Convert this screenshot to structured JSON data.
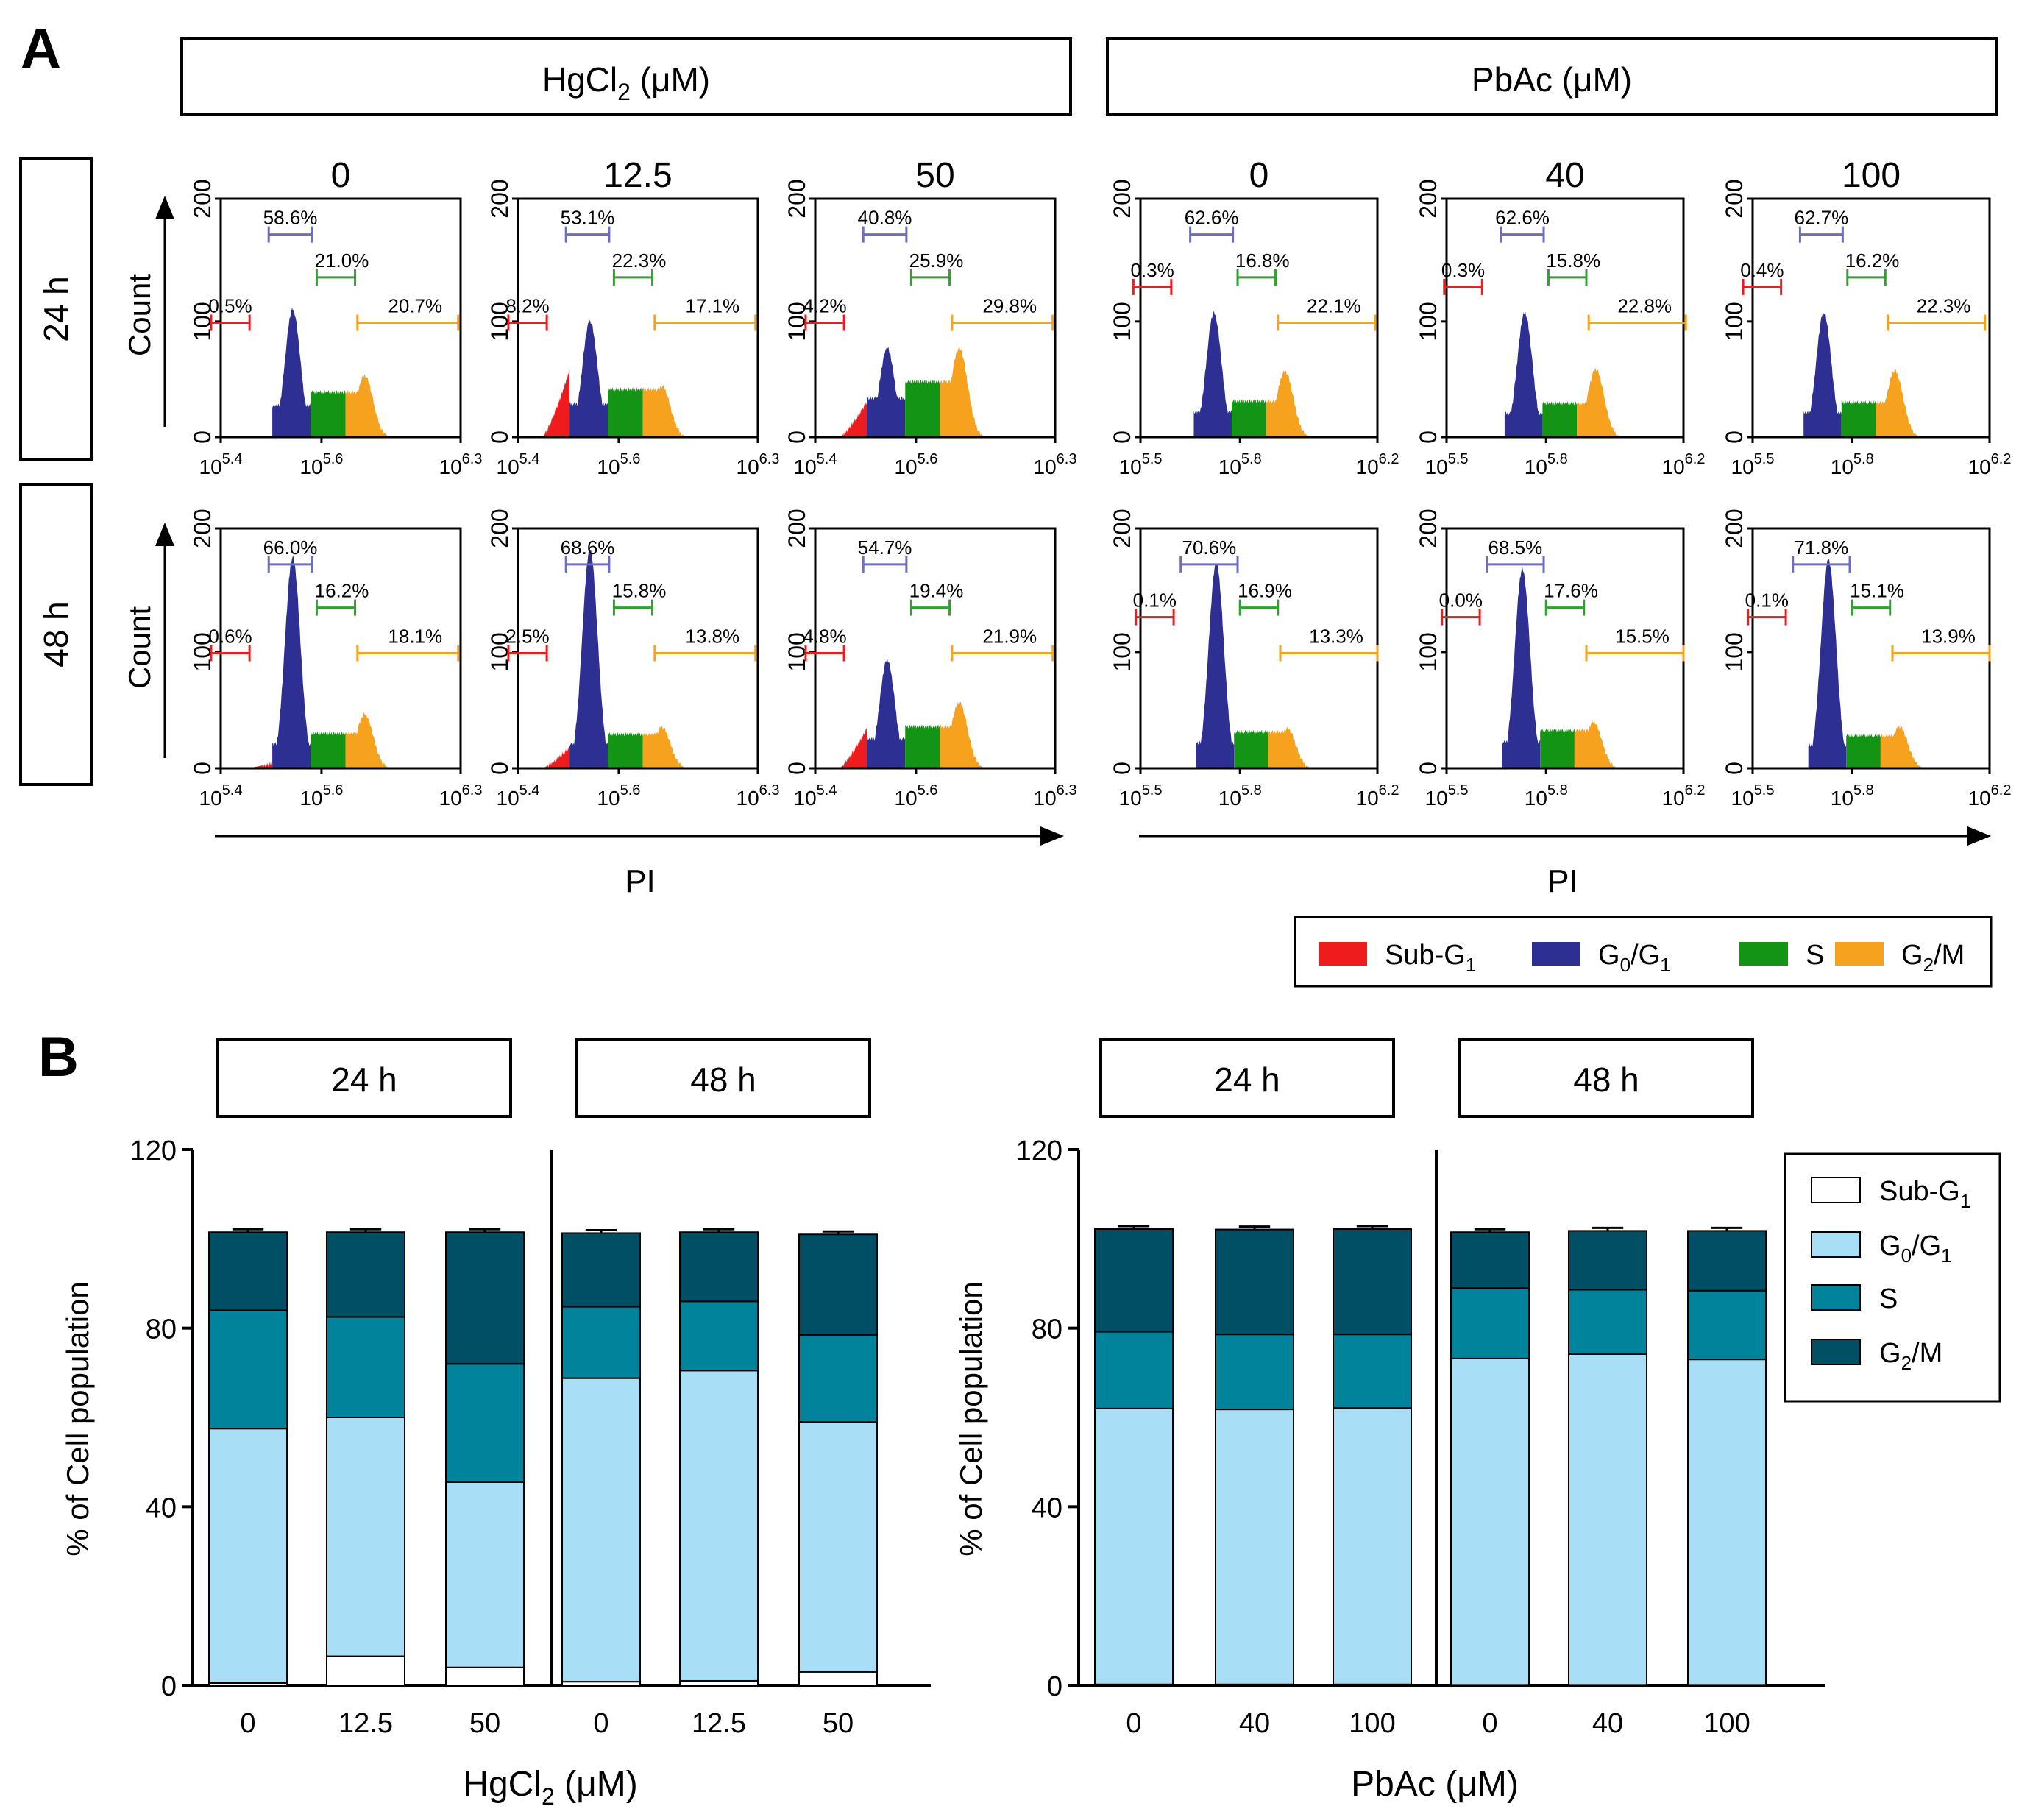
{
  "panel_labels": {
    "a": "A",
    "b": "B"
  },
  "colors": {
    "sub_g1": "#ee1c1c",
    "g0g1": "#2e2f92",
    "s": "#149414",
    "g2m": "#f7a21e",
    "b_sub": "#ffffff",
    "b_g0g1": "#a9dff6",
    "b_s": "#00839b",
    "b_g2m": "#004f64"
  },
  "panel_a": {
    "groups": [
      {
        "title": "HgCl",
        "title_sub": "2",
        "title_unit": " (μM)"
      },
      {
        "title": "PbAc",
        "title_sub": "",
        "title_unit": " (μM)"
      }
    ],
    "row_labels": [
      "24 h",
      "48 h"
    ],
    "y_axis_label": "Count",
    "x_axis_label": "PI",
    "y_ticks": [
      "0",
      "100",
      "200"
    ],
    "x_ticks": [
      [
        "10",
        "5.4",
        "10",
        "5.6",
        "10",
        "6.3"
      ],
      [
        "10",
        "5.5",
        "10",
        "5.8",
        "10",
        "6.2"
      ]
    ],
    "legend": [
      {
        "label": "Sub-G",
        "sub": "1",
        "label2": "",
        "sub2": "",
        "rest": ""
      },
      {
        "label": "G",
        "sub": "0",
        "label2": "/G",
        "sub2": "1",
        "rest": ""
      },
      {
        "label": "S",
        "sub": "",
        "label2": "",
        "sub2": "",
        "rest": ""
      },
      {
        "label": "G",
        "sub": "2",
        "label2": "/M",
        "sub2": "",
        "rest": ""
      }
    ],
    "histograms": [
      {
        "group": 0,
        "row": 0,
        "dose": "0",
        "sub_g1": "0.5%",
        "g0g1": "58.6%",
        "s": "21.0%",
        "g2m": "20.7%"
      },
      {
        "group": 0,
        "row": 0,
        "dose": "12.5",
        "sub_g1": "8.2%",
        "g0g1": "53.1%",
        "s": "22.3%",
        "g2m": "17.1%"
      },
      {
        "group": 0,
        "row": 0,
        "dose": "50",
        "sub_g1": "4.2%",
        "g0g1": "40.8%",
        "s": "25.9%",
        "g2m": "29.8%"
      },
      {
        "group": 1,
        "row": 0,
        "dose": "0",
        "sub_g1": "0.3%",
        "g0g1": "62.6%",
        "s": "16.8%",
        "g2m": "22.1%"
      },
      {
        "group": 1,
        "row": 0,
        "dose": "40",
        "sub_g1": "0.3%",
        "g0g1": "62.6%",
        "s": "15.8%",
        "g2m": "22.8%"
      },
      {
        "group": 1,
        "row": 0,
        "dose": "100",
        "sub_g1": "0.4%",
        "g0g1": "62.7%",
        "s": "16.2%",
        "g2m": "22.3%"
      },
      {
        "group": 0,
        "row": 1,
        "dose": "0",
        "sub_g1": "0.6%",
        "g0g1": "66.0%",
        "s": "16.2%",
        "g2m": "18.1%"
      },
      {
        "group": 0,
        "row": 1,
        "dose": "12.5",
        "sub_g1": "2.5%",
        "g0g1": "68.6%",
        "s": "15.8%",
        "g2m": "13.8%"
      },
      {
        "group": 0,
        "row": 1,
        "dose": "50",
        "sub_g1": "4.8%",
        "g0g1": "54.7%",
        "s": "19.4%",
        "g2m": "21.9%"
      },
      {
        "group": 1,
        "row": 1,
        "dose": "0",
        "sub_g1": "0.1%",
        "g0g1": "70.6%",
        "s": "16.9%",
        "g2m": "13.3%"
      },
      {
        "group": 1,
        "row": 1,
        "dose": "40",
        "sub_g1": "0.0%",
        "g0g1": "68.5%",
        "s": "17.6%",
        "g2m": "15.5%"
      },
      {
        "group": 1,
        "row": 1,
        "dose": "100",
        "sub_g1": "0.1%",
        "g0g1": "71.8%",
        "s": "15.1%",
        "g2m": "13.9%"
      }
    ]
  },
  "chart_data": [
    {
      "type": "bar",
      "stacked": true,
      "title": "",
      "xlabel": "HgCl2 (μM)",
      "xlabel_main": "HgCl",
      "xlabel_sub": "2",
      "xlabel_unit": " (μM)",
      "ylabel": "% of Cell population",
      "ylim": [
        0,
        120
      ],
      "yticks": [
        0,
        40,
        80,
        120
      ],
      "time_labels": [
        "24 h",
        "48 h"
      ],
      "categories": [
        "0",
        "12.5",
        "50",
        "0",
        "12.5",
        "50"
      ],
      "series": [
        {
          "name": "Sub-G1",
          "values": [
            0.5,
            6.5,
            4.0,
            0.8,
            1.0,
            3.0
          ]
        },
        {
          "name": "G0/G1",
          "values": [
            57.0,
            53.5,
            41.5,
            68.0,
            69.5,
            56.0
          ]
        },
        {
          "name": "S",
          "values": [
            26.5,
            22.5,
            26.5,
            16.0,
            15.5,
            19.5
          ]
        },
        {
          "name": "G2/M",
          "values": [
            17.5,
            19.0,
            29.5,
            16.5,
            15.5,
            22.5
          ]
        }
      ]
    },
    {
      "type": "bar",
      "stacked": true,
      "title": "",
      "xlabel": "PbAc (μM)",
      "xlabel_main": "PbAc",
      "xlabel_sub": "",
      "xlabel_unit": " (μM)",
      "ylabel": "% of Cell population",
      "ylim": [
        0,
        120
      ],
      "yticks": [
        0,
        40,
        80,
        120
      ],
      "time_labels": [
        "24 h",
        "48 h"
      ],
      "categories": [
        "0",
        "40",
        "100",
        "0",
        "40",
        "100"
      ],
      "series": [
        {
          "name": "Sub-G1",
          "values": [
            0.2,
            0.2,
            0.2,
            0.1,
            0.1,
            0.1
          ]
        },
        {
          "name": "G0/G1",
          "values": [
            61.8,
            61.6,
            61.9,
            73.1,
            74.1,
            72.9
          ]
        },
        {
          "name": "S",
          "values": [
            17.2,
            16.8,
            16.5,
            15.8,
            14.4,
            15.4
          ]
        },
        {
          "name": "G2/M",
          "values": [
            23.0,
            23.5,
            23.6,
            12.5,
            13.2,
            13.4
          ]
        }
      ],
      "legend": [
        {
          "label": "Sub-G",
          "sub": "1",
          "label2": "",
          "sub2": ""
        },
        {
          "label": "G",
          "sub": "0",
          "label2": "/G",
          "sub2": "1"
        },
        {
          "label": "S",
          "sub": "",
          "label2": "",
          "sub2": ""
        },
        {
          "label": "G",
          "sub": "2",
          "label2": "/M",
          "sub2": ""
        }
      ]
    }
  ]
}
